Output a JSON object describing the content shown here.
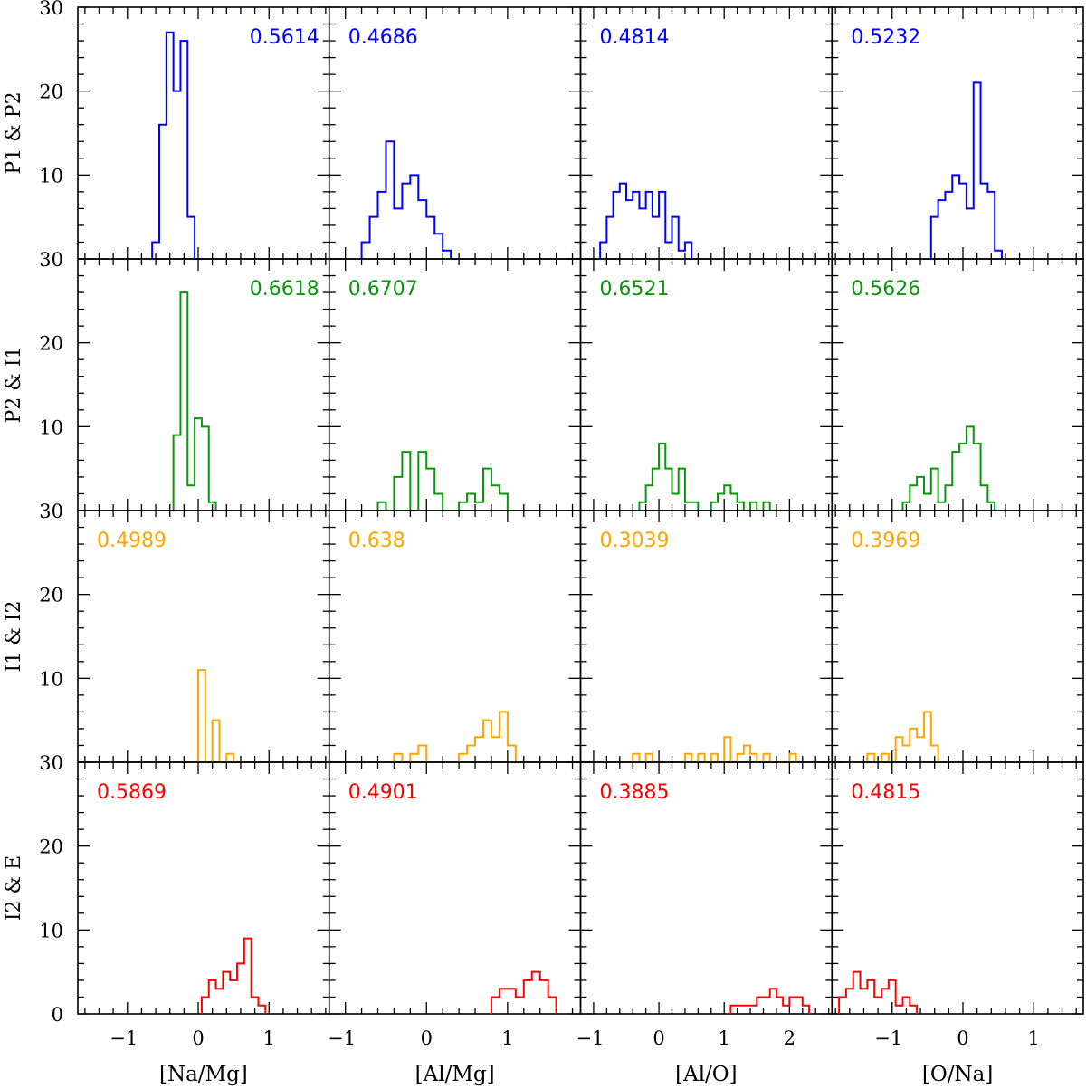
{
  "chart_data": {
    "type": "histogram-grid",
    "rows": [
      {
        "label": "P1 & P2",
        "color": "#0000ff"
      },
      {
        "label": "P2 & I1",
        "color": "#0a960a"
      },
      {
        "label": "I1 & I2",
        "color": "#ffa500"
      },
      {
        "label": "I2 & E",
        "color": "#ff0000"
      }
    ],
    "columns": [
      {
        "xlabel": "[Na/Mg]",
        "xlim": [
          -1.7,
          1.85
        ],
        "xticks": [
          -1,
          0,
          1
        ],
        "xtick_labels": [
          "−1",
          "0",
          "1"
        ]
      },
      {
        "xlabel": "[Al/Mg]",
        "xlim": [
          -1.2,
          1.9
        ],
        "xticks": [
          -1,
          0,
          1
        ],
        "xtick_labels": [
          "−1",
          "0",
          "1"
        ]
      },
      {
        "xlabel": "[Al/O]",
        "xlim": [
          -1.2,
          2.65
        ],
        "xticks": [
          -1,
          0,
          1,
          2
        ],
        "xtick_labels": [
          "−1",
          "0",
          "1",
          "2"
        ]
      },
      {
        "xlabel": "[O/Na]",
        "xlim": [
          -1.85,
          1.7
        ],
        "xticks": [
          -1,
          0,
          1
        ],
        "xtick_labels": [
          "−1",
          "0",
          "1"
        ]
      }
    ],
    "ylim": [
      0,
      30
    ],
    "yticks": [
      0,
      10,
      20,
      30
    ],
    "ytick_labels": [
      "0",
      "10",
      "20",
      "30"
    ],
    "ylim_label_override": {
      "row_bottom_zero": "30"
    },
    "panels": [
      [
        {
          "value": "0.5614",
          "pos": "right",
          "bins": [
            [
              -0.65,
              2
            ],
            [
              -0.55,
              16
            ],
            [
              -0.45,
              27
            ],
            [
              -0.35,
              20
            ],
            [
              -0.25,
              26
            ],
            [
              -0.15,
              5
            ],
            [
              -0.05,
              0
            ]
          ]
        },
        {
          "value": "0.4686",
          "pos": "left",
          "bins": [
            [
              -0.8,
              2
            ],
            [
              -0.7,
              5
            ],
            [
              -0.6,
              8
            ],
            [
              -0.5,
              14
            ],
            [
              -0.4,
              6
            ],
            [
              -0.3,
              9
            ],
            [
              -0.2,
              10
            ],
            [
              -0.1,
              7
            ],
            [
              0,
              5
            ],
            [
              0.1,
              3
            ],
            [
              0.2,
              1
            ]
          ]
        },
        {
          "value": "0.4814",
          "pos": "left",
          "bins": [
            [
              -0.9,
              2
            ],
            [
              -0.8,
              5
            ],
            [
              -0.7,
              8
            ],
            [
              -0.6,
              9
            ],
            [
              -0.5,
              7
            ],
            [
              -0.4,
              8
            ],
            [
              -0.3,
              6
            ],
            [
              -0.2,
              8
            ],
            [
              -0.1,
              5
            ],
            [
              0,
              8
            ],
            [
              0.1,
              2
            ],
            [
              0.2,
              5
            ],
            [
              0.3,
              1
            ],
            [
              0.4,
              2
            ],
            [
              0.5,
              0
            ]
          ]
        },
        {
          "value": "0.5232",
          "pos": "left",
          "bins": [
            [
              -0.45,
              5
            ],
            [
              -0.35,
              7
            ],
            [
              -0.25,
              8
            ],
            [
              -0.15,
              10
            ],
            [
              -0.05,
              9
            ],
            [
              0.05,
              6
            ],
            [
              0.15,
              21
            ],
            [
              0.25,
              9
            ],
            [
              0.35,
              8
            ],
            [
              0.45,
              1
            ]
          ]
        }
      ],
      [
        {
          "value": "0.6618",
          "pos": "right",
          "bins": [
            [
              -0.35,
              9
            ],
            [
              -0.25,
              26
            ],
            [
              -0.15,
              3
            ],
            [
              -0.05,
              11
            ],
            [
              0.05,
              10
            ],
            [
              0.15,
              1
            ]
          ]
        },
        {
          "value": "0.6707",
          "pos": "left",
          "bins": [
            [
              -0.6,
              1
            ],
            [
              -0.4,
              4
            ],
            [
              -0.3,
              7
            ],
            [
              -0.1,
              7
            ],
            [
              0,
              5
            ],
            [
              0.1,
              2
            ],
            [
              0.4,
              1
            ],
            [
              0.5,
              2
            ],
            [
              0.6,
              1
            ],
            [
              0.7,
              5
            ],
            [
              0.8,
              3
            ],
            [
              0.9,
              2
            ]
          ]
        },
        {
          "value": "0.6521",
          "pos": "left",
          "bins": [
            [
              -0.3,
              1
            ],
            [
              -0.2,
              3
            ],
            [
              -0.1,
              5
            ],
            [
              0,
              8
            ],
            [
              0.1,
              5
            ],
            [
              0.2,
              2
            ],
            [
              0.3,
              5
            ],
            [
              0.4,
              1
            ],
            [
              0.5,
              1
            ],
            [
              0.8,
              1
            ],
            [
              0.9,
              2
            ],
            [
              1.0,
              3
            ],
            [
              1.1,
              2
            ],
            [
              1.2,
              1
            ],
            [
              1.4,
              1
            ],
            [
              1.6,
              1
            ]
          ]
        },
        {
          "value": "0.5626",
          "pos": "left",
          "bins": [
            [
              -0.85,
              1
            ],
            [
              -0.75,
              3
            ],
            [
              -0.65,
              4
            ],
            [
              -0.55,
              2
            ],
            [
              -0.45,
              5
            ],
            [
              -0.35,
              1
            ],
            [
              -0.25,
              3
            ],
            [
              -0.15,
              7
            ],
            [
              -0.05,
              8
            ],
            [
              0.05,
              10
            ],
            [
              0.15,
              8
            ],
            [
              0.25,
              3
            ],
            [
              0.35,
              1
            ]
          ]
        }
      ],
      [
        {
          "value": "0.4989",
          "pos": "left",
          "bins": [
            [
              0.0,
              11
            ],
            [
              0.2,
              5
            ],
            [
              0.4,
              1
            ]
          ]
        },
        {
          "value": "0.638",
          "pos": "left",
          "bins": [
            [
              -0.4,
              1
            ],
            [
              -0.2,
              1
            ],
            [
              -0.1,
              2
            ],
            [
              0.4,
              1
            ],
            [
              0.5,
              2
            ],
            [
              0.6,
              3
            ],
            [
              0.7,
              5
            ],
            [
              0.8,
              3
            ],
            [
              0.9,
              6
            ],
            [
              1.0,
              2
            ]
          ]
        },
        {
          "value": "0.3039",
          "pos": "left",
          "bins": [
            [
              -0.4,
              1
            ],
            [
              -0.2,
              1
            ],
            [
              0.4,
              1
            ],
            [
              0.6,
              1
            ],
            [
              0.8,
              1
            ],
            [
              1.0,
              3
            ],
            [
              1.2,
              1
            ],
            [
              1.3,
              2
            ],
            [
              1.4,
              1
            ],
            [
              1.6,
              1
            ],
            [
              2.0,
              1
            ]
          ]
        },
        {
          "value": "0.3969",
          "pos": "left",
          "bins": [
            [
              -1.35,
              1
            ],
            [
              -1.15,
              1
            ],
            [
              -0.95,
              3
            ],
            [
              -0.85,
              2
            ],
            [
              -0.75,
              4
            ],
            [
              -0.65,
              3
            ],
            [
              -0.55,
              6
            ],
            [
              -0.45,
              2
            ]
          ]
        }
      ],
      [
        {
          "value": "0.5869",
          "pos": "left",
          "bins": [
            [
              0.05,
              2
            ],
            [
              0.15,
              4
            ],
            [
              0.25,
              3
            ],
            [
              0.35,
              5
            ],
            [
              0.45,
              4
            ],
            [
              0.55,
              6
            ],
            [
              0.65,
              9
            ],
            [
              0.75,
              2
            ],
            [
              0.85,
              1
            ]
          ]
        },
        {
          "value": "0.4901",
          "pos": "left",
          "bins": [
            [
              0.8,
              2
            ],
            [
              0.9,
              3
            ],
            [
              1.0,
              3
            ],
            [
              1.1,
              2
            ],
            [
              1.2,
              4
            ],
            [
              1.3,
              5
            ],
            [
              1.4,
              4
            ],
            [
              1.5,
              2
            ]
          ]
        },
        {
          "value": "0.3885",
          "pos": "left",
          "bins": [
            [
              1.1,
              1
            ],
            [
              1.2,
              1
            ],
            [
              1.3,
              1
            ],
            [
              1.4,
              1
            ],
            [
              1.5,
              2
            ],
            [
              1.6,
              2
            ],
            [
              1.7,
              3
            ],
            [
              1.8,
              2
            ],
            [
              1.9,
              1
            ],
            [
              2.0,
              2
            ],
            [
              2.1,
              2
            ],
            [
              2.2,
              1
            ]
          ]
        },
        {
          "value": "0.4815",
          "pos": "left",
          "bins": [
            [
              -1.75,
              2
            ],
            [
              -1.65,
              3
            ],
            [
              -1.55,
              5
            ],
            [
              -1.45,
              3
            ],
            [
              -1.35,
              4
            ],
            [
              -1.25,
              2
            ],
            [
              -1.15,
              3
            ],
            [
              -1.05,
              4
            ],
            [
              -0.95,
              1
            ],
            [
              -0.85,
              2
            ],
            [
              -0.75,
              1
            ]
          ]
        }
      ]
    ]
  }
}
